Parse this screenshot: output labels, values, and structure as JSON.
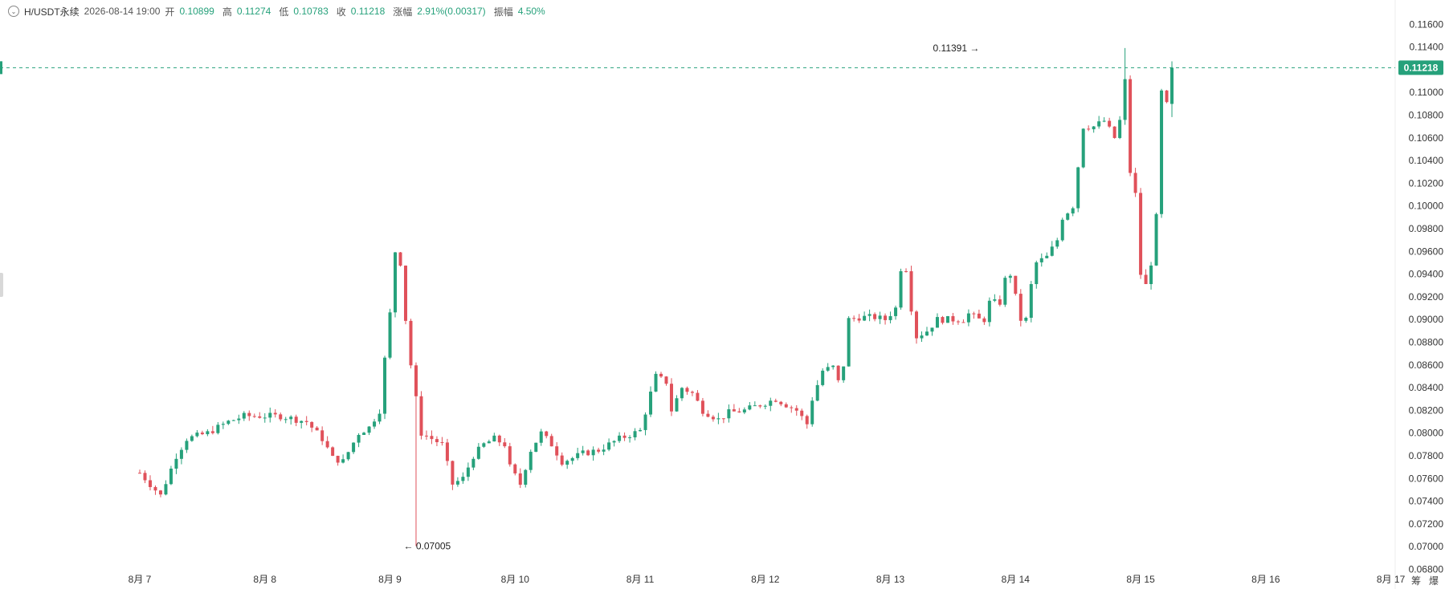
{
  "header": {
    "symbol": "H/USDT永续",
    "datetime": "2026-08-14 19:00",
    "open_label": "开",
    "open": "0.10899",
    "high_label": "高",
    "high": "0.11274",
    "low_label": "低",
    "low": "0.10783",
    "close_label": "收",
    "close": "0.11218",
    "change_label": "涨幅",
    "change": "2.91%(0.00317)",
    "amplitude_label": "振幅",
    "amplitude": "4.50%"
  },
  "corner": {
    "left": "筹",
    "right": "爆"
  },
  "colors": {
    "up": "#26a17b",
    "down": "#e0515a",
    "price_line": "#26a17b",
    "text": "#333333"
  },
  "chart_data": {
    "type": "candlestick",
    "title": "",
    "xlabel": "",
    "ylabel": "",
    "ylim": [
      0.068,
      0.117
    ],
    "y_ticks": [
      "0.11600",
      "0.11400",
      "0.11000",
      "0.10800",
      "0.10600",
      "0.10400",
      "0.10200",
      "0.10000",
      "0.09800",
      "0.09600",
      "0.09400",
      "0.09200",
      "0.09000",
      "0.08800",
      "0.08600",
      "0.08400",
      "0.08200",
      "0.08000",
      "0.07800",
      "0.07600",
      "0.07400",
      "0.07200",
      "0.07000",
      "0.06800"
    ],
    "x_ticks": [
      "8月 7",
      "8月 8",
      "8月 9",
      "8月 10",
      "8月 11",
      "8月 12",
      "8月 13",
      "8月 14",
      "8月 15",
      "8月 16",
      "8月 17"
    ],
    "interval_hours": 1,
    "x_range_hours": [
      -142,
      127
    ],
    "current_price": "0.11218",
    "annotations": [
      {
        "label": "0.11391",
        "hour": 162,
        "value": 0.11391,
        "side": "left"
      },
      {
        "label": "0.07005",
        "hour": 50,
        "value": 0.07005,
        "side": "right"
      }
    ],
    "grid": false,
    "keyframes": [
      [
        0,
        0.0765
      ],
      [
        4,
        0.0745
      ],
      [
        7,
        0.078
      ],
      [
        9,
        0.0795
      ],
      [
        13,
        0.08
      ],
      [
        17,
        0.081
      ],
      [
        20,
        0.0815
      ],
      [
        24,
        0.0815
      ],
      [
        27,
        0.0815
      ],
      [
        32,
        0.081
      ],
      [
        35,
        0.0795
      ],
      [
        37,
        0.0778
      ],
      [
        39,
        0.0775
      ],
      [
        42,
        0.08
      ],
      [
        44,
        0.0805
      ],
      [
        46,
        0.082
      ],
      [
        47,
        0.0865
      ],
      [
        48,
        0.0905
      ],
      [
        49,
        0.096
      ],
      [
        50,
        0.095
      ],
      [
        51,
        0.09
      ],
      [
        52,
        0.086
      ],
      [
        54,
        0.08
      ],
      [
        56,
        0.0795
      ],
      [
        58,
        0.079
      ],
      [
        60,
        0.0755
      ],
      [
        62,
        0.076
      ],
      [
        64,
        0.078
      ],
      [
        66,
        0.079
      ],
      [
        68,
        0.0795
      ],
      [
        70,
        0.079
      ],
      [
        71,
        0.077
      ],
      [
        73,
        0.0755
      ],
      [
        75,
        0.0785
      ],
      [
        77,
        0.08
      ],
      [
        79,
        0.079
      ],
      [
        81,
        0.0775
      ],
      [
        83,
        0.0778
      ],
      [
        85,
        0.0782
      ],
      [
        88,
        0.0785
      ],
      [
        92,
        0.0795
      ],
      [
        96,
        0.0802
      ],
      [
        98,
        0.0835
      ],
      [
        99,
        0.085
      ],
      [
        101,
        0.0845
      ],
      [
        102,
        0.082
      ],
      [
        104,
        0.084
      ],
      [
        106,
        0.0835
      ],
      [
        108,
        0.082
      ],
      [
        111,
        0.0812
      ],
      [
        113,
        0.0818
      ],
      [
        116,
        0.082
      ],
      [
        119,
        0.0825
      ],
      [
        122,
        0.083
      ],
      [
        124,
        0.0825
      ],
      [
        126,
        0.082
      ],
      [
        128,
        0.0808
      ],
      [
        129,
        0.083
      ],
      [
        131,
        0.0855
      ],
      [
        133,
        0.0858
      ],
      [
        134,
        0.0845
      ],
      [
        135,
        0.086
      ],
      [
        136,
        0.09
      ],
      [
        138,
        0.0902
      ],
      [
        141,
        0.0902
      ],
      [
        143,
        0.09
      ],
      [
        145,
        0.091
      ],
      [
        146,
        0.0945
      ],
      [
        147,
        0.0945
      ],
      [
        148,
        0.091
      ],
      [
        149,
        0.0885
      ],
      [
        151,
        0.089
      ],
      [
        153,
        0.09
      ],
      [
        156,
        0.09
      ],
      [
        158,
        0.09
      ],
      [
        159,
        0.0905
      ],
      [
        161,
        0.09
      ],
      [
        162,
        0.09
      ],
      [
        163,
        0.0915
      ],
      [
        165,
        0.0915
      ],
      [
        166,
        0.0935
      ],
      [
        167,
        0.094
      ],
      [
        168,
        0.092
      ],
      [
        169,
        0.09
      ],
      [
        170,
        0.09
      ],
      [
        171,
        0.093
      ],
      [
        172,
        0.095
      ],
      [
        174,
        0.0955
      ],
      [
        176,
        0.097
      ],
      [
        177,
        0.099
      ],
      [
        179,
        0.1
      ],
      [
        181,
        0.107
      ],
      [
        183,
        0.107
      ],
      [
        185,
        0.1075
      ],
      [
        187,
        0.106
      ],
      [
        188,
        0.1075
      ],
      [
        189,
        0.111
      ],
      [
        190,
        0.103
      ],
      [
        191,
        0.101
      ],
      [
        192,
        0.094
      ],
      [
        193,
        0.093
      ],
      [
        194,
        0.095
      ],
      [
        195,
        0.099
      ],
      [
        196,
        0.11
      ],
      [
        197,
        0.1089
      ],
      [
        198,
        0.1122
      ]
    ]
  }
}
